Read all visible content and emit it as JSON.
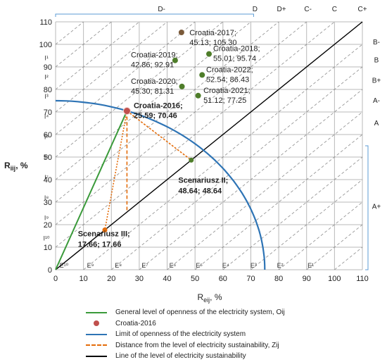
{
  "chart_data": {
    "type": "scatter",
    "xlabel": "R",
    "xlabel_sub": "eij",
    "xlabel_unit": ", %",
    "ylabel": "R",
    "ylabel_sub": "iij",
    "ylabel_unit": ", %",
    "xlim": [
      0,
      110
    ],
    "ylim": [
      0,
      110
    ],
    "x_ticks": [
      0,
      10,
      20,
      30,
      40,
      50,
      60,
      70,
      80,
      90,
      100,
      110
    ],
    "y_ticks": [
      0,
      10,
      20,
      30,
      40,
      50,
      60,
      70,
      80,
      90,
      100,
      110
    ],
    "radius": 75,
    "colors": {
      "openness": "#3a9a3a",
      "point": "#c0504d",
      "limit": "#2e74b5",
      "distance": "#e46c0a",
      "sustainability": "#000000",
      "grid": "#b8b8b8",
      "diag": "#8c8c8c",
      "year_point": "#4e7d2a",
      "bracket": "#5b9bd5"
    },
    "points": [
      {
        "label": "Croatia-2017;",
        "coords": "45.13; 105.30",
        "x": 45.13,
        "y": 105.3,
        "color": "#7a5a3a"
      },
      {
        "label": "Croatia-2018;",
        "coords": "55.01; 95.74",
        "x": 55.01,
        "y": 95.74,
        "color": "#4e7d2a"
      },
      {
        "label": "Croatia-2019;",
        "coords": "42.86; 92.91",
        "x": 42.86,
        "y": 92.91,
        "color": "#4e7d2a"
      },
      {
        "label": "Croatia-2022;",
        "coords": "52.54; 86.43",
        "x": 52.54,
        "y": 86.43,
        "color": "#4e7d2a"
      },
      {
        "label": "Croatia-2020;",
        "coords": "45.30; 81.31",
        "x": 45.3,
        "y": 81.31,
        "color": "#4e7d2a"
      },
      {
        "label": "Croatia-2021;",
        "coords": "51.12; 77.25",
        "x": 51.12,
        "y": 77.25,
        "color": "#4e7d2a"
      },
      {
        "label": "Croatia-2016;",
        "coords": "25.59; 70.46",
        "x": 25.59,
        "y": 70.46,
        "color": "#c0504d",
        "bold": true
      }
    ],
    "scenarios": [
      {
        "label": "Scenariusz II;",
        "coords": "48.64; 48.64",
        "x": 48.64,
        "y": 48.64,
        "color": "#4e7d2a"
      },
      {
        "label": "Scenariusz III;",
        "coords": "17.66; 17.66",
        "x": 17.66,
        "y": 17.66,
        "color": "#e46c0a"
      }
    ],
    "openness_line": {
      "from": [
        0,
        0
      ],
      "to": [
        25.59,
        70.46
      ]
    },
    "sustainability_line": {
      "from": [
        0,
        0
      ],
      "to": [
        110,
        110
      ]
    },
    "distance_lines": [
      {
        "from": [
          25.59,
          70.46
        ],
        "to": [
          25.59,
          25.59
        ]
      },
      {
        "from": [
          25.59,
          70.46
        ],
        "to": [
          48.64,
          48.64
        ]
      },
      {
        "from": [
          25.59,
          70.46
        ],
        "to": [
          17.66,
          17.66
        ]
      }
    ],
    "top_zones": [
      "D-",
      "D",
      "D+",
      "C-",
      "C",
      "C+"
    ],
    "right_zones": [
      "B-",
      "B",
      "B+",
      "A-",
      "A",
      "A+"
    ],
    "i_levels": [
      "I¹",
      "I²",
      "I³",
      "I⁴",
      "I⁵",
      "I⁶",
      "I⁷",
      "I⁸",
      "I⁹",
      "I¹⁰"
    ],
    "e_levels": [
      "E¹⁰",
      "E⁹",
      "E⁸",
      "E⁷",
      "E⁶",
      "E⁵",
      "E⁴",
      "E³",
      "E²",
      "E¹"
    ],
    "legend": [
      {
        "label": "General level of openness of the electricity system, Oij",
        "type": "line",
        "color": "#3a9a3a"
      },
      {
        "label": "Croatia-2016",
        "type": "dot",
        "color": "#c0504d"
      },
      {
        "label": "Limit of openness of the electricity system",
        "type": "line",
        "color": "#2e74b5"
      },
      {
        "label": "Distance from the level of electricity sustainability, Zij",
        "type": "dash",
        "color": "#e46c0a"
      },
      {
        "label": "Line of the level of electricity sustainability",
        "type": "line",
        "color": "#000000"
      }
    ]
  }
}
